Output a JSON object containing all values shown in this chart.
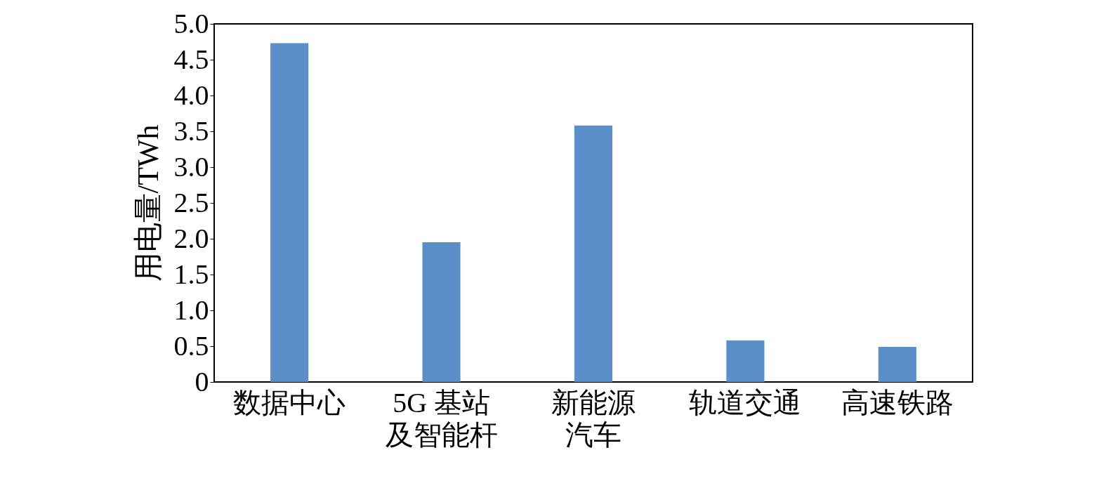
{
  "chart_data": {
    "type": "bar",
    "ylabel": "用电量/TWh",
    "categories": [
      "数据中心",
      "5G 基站及智能杆",
      "新能源汽车",
      "轨道交通",
      "高速铁路"
    ],
    "values": [
      4.73,
      1.95,
      3.58,
      0.58,
      0.49
    ],
    "color": "#5b8fc9",
    "ylim": [
      0,
      5
    ],
    "yticks": [
      0,
      {
        "value": 0.5,
        "label": "0.5"
      },
      {
        "value": 1,
        "label": "1.0"
      },
      {
        "value": 1.5,
        "label": "1.5"
      },
      {
        "value": 2,
        "label": "2.0"
      },
      {
        "value": 2.5,
        "label": "2.5"
      },
      {
        "value": 3,
        "label": "3.0"
      },
      {
        "value": 3.5,
        "label": "3.5"
      },
      {
        "value": 4,
        "label": "4.0"
      },
      {
        "value": 4.5,
        "label": "4.5"
      },
      {
        "value": 5,
        "label": "5.0"
      }
    ],
    "grid": false
  }
}
